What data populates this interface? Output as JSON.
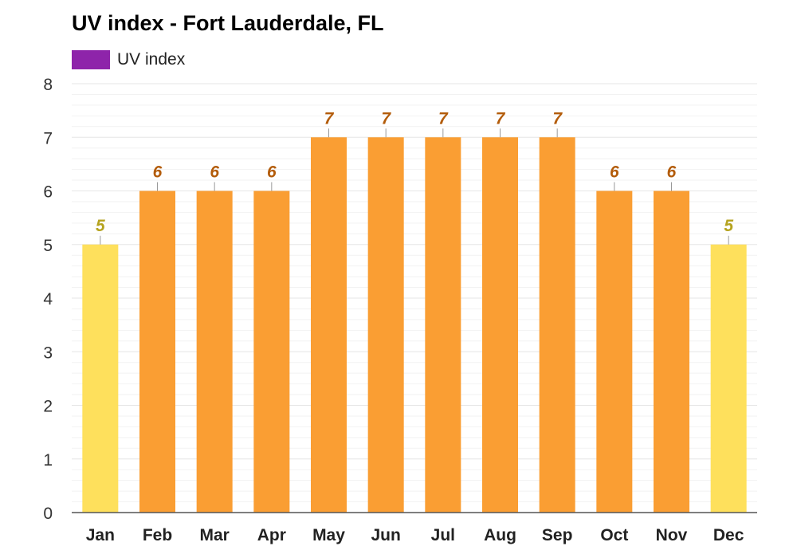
{
  "chart_data": {
    "type": "bar",
    "title": "UV index - Fort Lauderdale, FL",
    "xlabel": "",
    "ylabel": "",
    "categories": [
      "Jan",
      "Feb",
      "Mar",
      "Apr",
      "May",
      "Jun",
      "Jul",
      "Aug",
      "Sep",
      "Oct",
      "Nov",
      "Dec"
    ],
    "series": [
      {
        "name": "UV index",
        "values": [
          5,
          6,
          6,
          6,
          7,
          7,
          7,
          7,
          7,
          6,
          6,
          5
        ]
      }
    ],
    "ylim": [
      0,
      8
    ],
    "yticks": [
      "0",
      "1",
      "2",
      "3",
      "4",
      "5",
      "6",
      "7",
      "8"
    ],
    "grid": true,
    "legend_position": "top-left",
    "colors": {
      "legend_swatch": "#8e24aa",
      "bar_moderate": "#fee05c",
      "bar_high": "#fa9e33",
      "label_moderate": "#b5a31f",
      "label_high": "#b35c0a",
      "gridline": "#e6e6e6",
      "minor_gridline": "#f2f2f2",
      "axis": "#555555"
    }
  }
}
